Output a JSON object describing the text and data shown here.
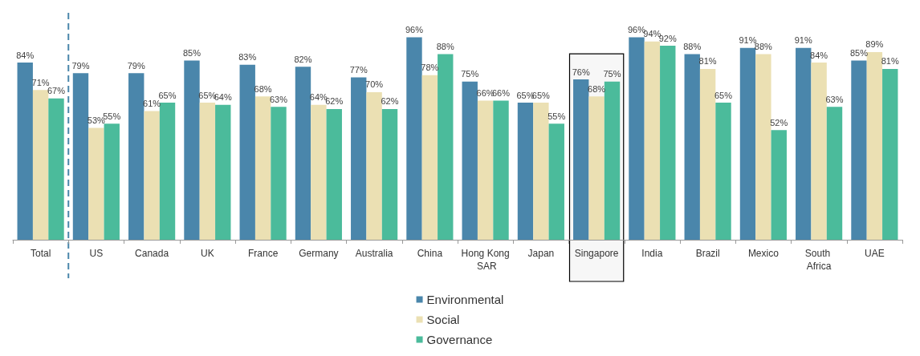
{
  "chart_data": {
    "type": "bar",
    "categories": [
      "Total",
      "US",
      "Canada",
      "UK",
      "France",
      "Germany",
      "Australia",
      "China",
      "Hong Kong SAR",
      "Japan",
      "Singapore",
      "India",
      "Brazil",
      "Mexico",
      "South Africa",
      "UAE"
    ],
    "series": [
      {
        "name": "Environmental",
        "color": "#4a86ab",
        "values": [
          84,
          79,
          79,
          85,
          83,
          82,
          77,
          96,
          75,
          65,
          76,
          96,
          88,
          91,
          91,
          85
        ],
        "value_labels": [
          "84%",
          "79%",
          "79%",
          "85%",
          "83%",
          "82%",
          "77%",
          "96%",
          "75%",
          "65%",
          "76%",
          "96%",
          "88%",
          "91%",
          "91%",
          "85%"
        ]
      },
      {
        "name": "Social",
        "color": "#ebe0b3",
        "values": [
          71,
          53,
          61,
          65,
          68,
          64,
          70,
          78,
          66,
          65,
          68,
          94,
          81,
          88,
          84,
          89
        ],
        "value_labels": [
          "71%",
          "53%",
          "61%",
          "65%",
          "68%",
          "64%",
          "70%",
          "78%",
          "66%",
          "65%",
          "68%",
          "94%",
          "81%",
          "88%",
          "84%",
          "89%"
        ]
      },
      {
        "name": "Governance",
        "color": "#4bbb9b",
        "values": [
          67,
          55,
          65,
          64,
          63,
          62,
          62,
          88,
          66,
          55,
          75,
          92,
          65,
          52,
          63,
          81
        ],
        "value_labels": [
          "67%",
          "55%",
          "65%",
          "64%",
          "63%",
          "62%",
          "62%",
          "88%",
          "66%",
          "55%",
          "75%",
          "92%",
          "65%",
          "52%",
          "63%",
          "81%"
        ]
      }
    ],
    "ref_lines": [
      {
        "axis": "x",
        "value": "Total",
        "color": "#4a86ab",
        "line_style": "dashed"
      }
    ],
    "bands": [
      {
        "axis": "x",
        "from": "Singapore",
        "to": "Singapore",
        "color": "#000000"
      }
    ],
    "legend": "bottom"
  }
}
